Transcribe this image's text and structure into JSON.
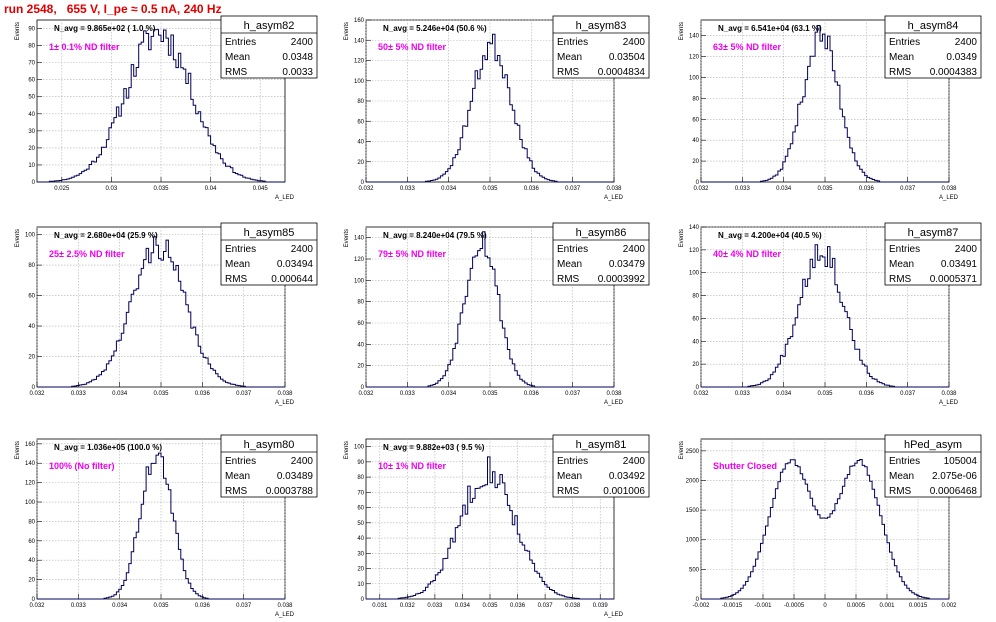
{
  "header": {
    "run_title": "run 2548,   655 V, I_pe ≈ 0.5 nA, 240 Hz"
  },
  "colors": {
    "histogram": "#00005a",
    "label": "#ee00ee",
    "title": "#e00000",
    "grid": "#b0b0b0"
  },
  "chart_data": [
    {
      "type": "histogram",
      "name": "h_asym82",
      "entries": "2400",
      "mean": "0.0348",
      "rms": "0.0033",
      "navg": "N_avg = 9.865e+02 ( 1.0 %)",
      "filter": "1± 0.1% ND filter",
      "xlim": [
        0.0225,
        0.0475
      ],
      "ylim": [
        0,
        95
      ],
      "xticks": [
        [
          0.025,
          "0.025"
        ],
        [
          0.03,
          "0.03"
        ],
        [
          0.035,
          "0.035"
        ],
        [
          0.04,
          "0.04"
        ],
        [
          0.045,
          "0.045"
        ]
      ],
      "yticks": [
        10,
        20,
        30,
        40,
        50,
        60,
        70,
        80,
        90
      ],
      "ylabel": "Events",
      "xlabel": "A_LED",
      "mu": 0.0348,
      "sigma": 0.0033,
      "peak": 88,
      "noise": 0.12,
      "seed": 11
    },
    {
      "type": "histogram",
      "name": "h_asym83",
      "entries": "2400",
      "mean": "0.03504",
      "rms": "0.0004834",
      "navg": "N_avg = 5.246e+04 (50.6 %)",
      "filter": "50± 5% ND filter",
      "xlim": [
        0.032,
        0.038
      ],
      "ylim": [
        0,
        160
      ],
      "xticks": [
        [
          0.032,
          "0.032"
        ],
        [
          0.033,
          "0.033"
        ],
        [
          0.034,
          "0.034"
        ],
        [
          0.035,
          "0.035"
        ],
        [
          0.036,
          "0.036"
        ],
        [
          0.037,
          "0.037"
        ],
        [
          0.038,
          "0.038"
        ]
      ],
      "yticks": [
        20,
        40,
        60,
        80,
        100,
        120,
        140,
        160
      ],
      "ylabel": "Events",
      "xlabel": "A_LED",
      "mu": 0.03504,
      "sigma": 0.00048,
      "peak": 135,
      "noise": 0.1,
      "seed": 23
    },
    {
      "type": "histogram",
      "name": "h_asym84",
      "entries": "2400",
      "mean": "0.0349",
      "rms": "0.0004383",
      "navg": "N_avg = 6.541e+04 (63.1 %)",
      "filter": "63± 5% ND filter",
      "xlim": [
        0.032,
        0.038
      ],
      "ylim": [
        0,
        155
      ],
      "xticks": [
        [
          0.032,
          "0.032"
        ],
        [
          0.033,
          "0.033"
        ],
        [
          0.034,
          "0.034"
        ],
        [
          0.035,
          "0.035"
        ],
        [
          0.036,
          "0.036"
        ],
        [
          0.037,
          "0.037"
        ],
        [
          0.038,
          "0.038"
        ]
      ],
      "yticks": [
        20,
        40,
        60,
        80,
        100,
        120,
        140
      ],
      "ylabel": "Events",
      "xlabel": "A_LED",
      "mu": 0.0349,
      "sigma": 0.00044,
      "peak": 140,
      "noise": 0.1,
      "seed": 37
    },
    {
      "type": "histogram",
      "name": "h_asym85",
      "entries": "2400",
      "mean": "0.03494",
      "rms": "0.000644",
      "navg": "N_avg = 2.680e+04 (25.9 %)",
      "filter": "25± 2.5% ND filter",
      "xlim": [
        0.032,
        0.038
      ],
      "ylim": [
        0,
        105
      ],
      "xticks": [
        [
          0.032,
          "0.032"
        ],
        [
          0.033,
          "0.033"
        ],
        [
          0.034,
          "0.034"
        ],
        [
          0.035,
          "0.035"
        ],
        [
          0.036,
          "0.036"
        ],
        [
          0.037,
          "0.037"
        ],
        [
          0.038,
          "0.038"
        ]
      ],
      "yticks": [
        20,
        40,
        60,
        80,
        100
      ],
      "ylabel": "Events",
      "xlabel": "A_LED",
      "mu": 0.03494,
      "sigma": 0.00064,
      "peak": 93,
      "noise": 0.1,
      "seed": 41
    },
    {
      "type": "histogram",
      "name": "h_asym86",
      "entries": "2400",
      "mean": "0.03479",
      "rms": "0.0003992",
      "navg": "N_avg = 8.240e+04 (79.5 %)",
      "filter": "79± 5% ND filter",
      "xlim": [
        0.032,
        0.038
      ],
      "ylim": [
        0,
        150
      ],
      "xticks": [
        [
          0.032,
          "0.032"
        ],
        [
          0.033,
          "0.033"
        ],
        [
          0.034,
          "0.034"
        ],
        [
          0.035,
          "0.035"
        ],
        [
          0.036,
          "0.036"
        ],
        [
          0.037,
          "0.037"
        ],
        [
          0.038,
          "0.038"
        ]
      ],
      "yticks": [
        20,
        40,
        60,
        80,
        100,
        120,
        140
      ],
      "ylabel": "Events",
      "xlabel": "A_LED",
      "mu": 0.03479,
      "sigma": 0.0004,
      "peak": 140,
      "noise": 0.1,
      "seed": 53
    },
    {
      "type": "histogram",
      "name": "h_asym87",
      "entries": "2400",
      "mean": "0.03491",
      "rms": "0.0005371",
      "navg": "N_avg = 4.200e+04 (40.5 %)",
      "filter": "40± 4% ND filter",
      "xlim": [
        0.032,
        0.038
      ],
      "ylim": [
        0,
        140
      ],
      "xticks": [
        [
          0.032,
          "0.032"
        ],
        [
          0.033,
          "0.033"
        ],
        [
          0.034,
          "0.034"
        ],
        [
          0.035,
          "0.035"
        ],
        [
          0.036,
          "0.036"
        ],
        [
          0.037,
          "0.037"
        ],
        [
          0.038,
          "0.038"
        ]
      ],
      "yticks": [
        20,
        40,
        60,
        80,
        100,
        120,
        140
      ],
      "ylabel": "Events",
      "xlabel": "A_LED",
      "mu": 0.03491,
      "sigma": 0.00054,
      "peak": 122,
      "noise": 0.12,
      "seed": 67
    },
    {
      "type": "histogram",
      "name": "h_asym80",
      "entries": "2400",
      "mean": "0.03489",
      "rms": "0.0003788",
      "navg": "N_avg = 1.036e+05 (100.0 %)",
      "filter": "100% (No filter)",
      "xlim": [
        0.032,
        0.038
      ],
      "ylim": [
        0,
        165
      ],
      "xticks": [
        [
          0.032,
          "0.032"
        ],
        [
          0.033,
          "0.033"
        ],
        [
          0.034,
          "0.034"
        ],
        [
          0.035,
          "0.035"
        ],
        [
          0.036,
          "0.036"
        ],
        [
          0.037,
          "0.037"
        ],
        [
          0.038,
          "0.038"
        ]
      ],
      "yticks": [
        20,
        40,
        60,
        80,
        100,
        120,
        140,
        160
      ],
      "ylabel": "Events",
      "xlabel": "A_LED",
      "mu": 0.03489,
      "sigma": 0.00038,
      "peak": 150,
      "noise": 0.08,
      "seed": 71
    },
    {
      "type": "histogram",
      "name": "h_asym81",
      "entries": "2400",
      "mean": "0.03492",
      "rms": "0.001006",
      "navg": "N_avg = 9.882e+03 ( 9.5 %)",
      "filter": "10± 1% ND filter",
      "xlim": [
        0.0305,
        0.0395
      ],
      "ylim": [
        0,
        105
      ],
      "xticks": [
        [
          0.031,
          "0.031"
        ],
        [
          0.032,
          "0.032"
        ],
        [
          0.033,
          "0.033"
        ],
        [
          0.034,
          "0.034"
        ],
        [
          0.035,
          "0.035"
        ],
        [
          0.036,
          "0.036"
        ],
        [
          0.037,
          "0.037"
        ],
        [
          0.038,
          "0.038"
        ],
        [
          0.039,
          "0.039"
        ]
      ],
      "yticks": [
        10,
        20,
        30,
        40,
        50,
        60,
        70,
        80,
        90,
        100
      ],
      "ylabel": "Events",
      "xlabel": "A_LED",
      "mu": 0.03492,
      "sigma": 0.001,
      "peak": 85,
      "noise": 0.12,
      "seed": 83
    },
    {
      "type": "histogram",
      "name": "hPed_asym",
      "entries": "105004",
      "mean": "2.075e-06",
      "rms": "0.0006468",
      "navg": "",
      "filter": "Shutter Closed",
      "xlim": [
        -0.002,
        0.002
      ],
      "ylim": [
        0,
        2700
      ],
      "xticks": [
        [
          -0.002,
          "-0.002"
        ],
        [
          -0.0015,
          "-0.0015"
        ],
        [
          -0.001,
          "-0.001"
        ],
        [
          -0.0005,
          "-0.0005"
        ],
        [
          0,
          "0"
        ],
        [
          0.0005,
          "0.0005"
        ],
        [
          0.001,
          "0.001"
        ],
        [
          0.0015,
          "0.0015"
        ],
        [
          0.002,
          "0.002"
        ]
      ],
      "yticks": [
        500,
        1000,
        1500,
        2000,
        2500
      ],
      "ylabel": "Events",
      "xlabel": "",
      "bimodal": true,
      "mu1": -0.00055,
      "mu2": 0.00055,
      "sigma": 0.00035,
      "peak": 2550,
      "dip": 1200,
      "noise": 0.015,
      "seed": 97
    }
  ],
  "stats_labels": {
    "entries": "Entries",
    "mean": "Mean",
    "rms": "RMS"
  }
}
